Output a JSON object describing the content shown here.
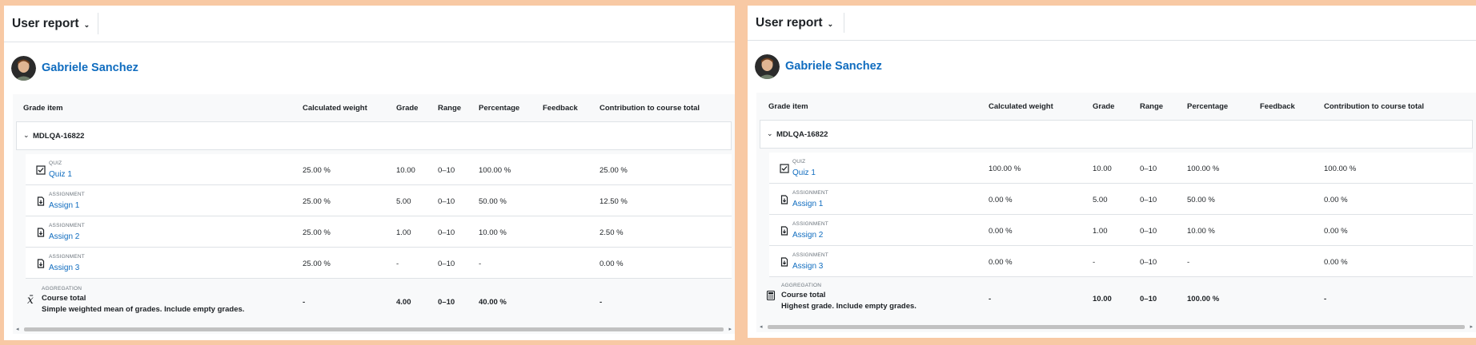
{
  "panels": [
    {
      "header_title": "User report",
      "user_name": "Gabriele Sanchez",
      "columns": [
        "Grade item",
        "Calculated weight",
        "Grade",
        "Range",
        "Percentage",
        "Feedback",
        "Contribution to course total"
      ],
      "category": "MDLQA-16822",
      "items": [
        {
          "type": "QUIZ",
          "name": "Quiz 1",
          "icon": "quiz-icon",
          "weight": "25.00 %",
          "grade": "10.00",
          "range": "0–10",
          "percentage": "100.00 %",
          "feedback": "",
          "contribution": "25.00 %"
        },
        {
          "type": "ASSIGNMENT",
          "name": "Assign 1",
          "icon": "assignment-icon",
          "weight": "25.00 %",
          "grade": "5.00",
          "range": "0–10",
          "percentage": "50.00 %",
          "feedback": "",
          "contribution": "12.50 %"
        },
        {
          "type": "ASSIGNMENT",
          "name": "Assign 2",
          "icon": "assignment-icon",
          "weight": "25.00 %",
          "grade": "1.00",
          "range": "0–10",
          "percentage": "10.00 %",
          "feedback": "",
          "contribution": "2.50 %"
        },
        {
          "type": "ASSIGNMENT",
          "name": "Assign 3",
          "icon": "assignment-icon",
          "weight": "25.00 %",
          "grade": "-",
          "range": "0–10",
          "percentage": "-",
          "feedback": "",
          "contribution": "0.00 %"
        }
      ],
      "total": {
        "type": "AGGREGATION",
        "name": "Course total",
        "description": "Simple weighted mean of grades. Include empty grades.",
        "icon": "sigma-icon",
        "weight": "-",
        "grade": "4.00",
        "range": "0–10",
        "percentage": "40.00 %",
        "contribution": "-"
      }
    },
    {
      "header_title": "User report",
      "user_name": "Gabriele Sanchez",
      "columns": [
        "Grade item",
        "Calculated weight",
        "Grade",
        "Range",
        "Percentage",
        "Feedback",
        "Contribution to course total"
      ],
      "category": "MDLQA-16822",
      "items": [
        {
          "type": "QUIZ",
          "name": "Quiz 1",
          "icon": "quiz-icon",
          "weight": "100.00 %",
          "grade": "10.00",
          "range": "0–10",
          "percentage": "100.00 %",
          "feedback": "",
          "contribution": "100.00 %"
        },
        {
          "type": "ASSIGNMENT",
          "name": "Assign 1",
          "icon": "assignment-icon",
          "weight": "0.00 %",
          "grade": "5.00",
          "range": "0–10",
          "percentage": "50.00 %",
          "feedback": "",
          "contribution": "0.00 %"
        },
        {
          "type": "ASSIGNMENT",
          "name": "Assign 2",
          "icon": "assignment-icon",
          "weight": "0.00 %",
          "grade": "1.00",
          "range": "0–10",
          "percentage": "10.00 %",
          "feedback": "",
          "contribution": "0.00 %"
        },
        {
          "type": "ASSIGNMENT",
          "name": "Assign 3",
          "icon": "assignment-icon",
          "weight": "0.00 %",
          "grade": "-",
          "range": "0–10",
          "percentage": "-",
          "feedback": "",
          "contribution": "0.00 %"
        }
      ],
      "total": {
        "type": "AGGREGATION",
        "name": "Course total",
        "description": "Highest grade. Include empty grades.",
        "icon": "calculator-icon",
        "weight": "-",
        "grade": "10.00",
        "range": "0–10",
        "percentage": "100.00 %",
        "contribution": "-"
      }
    }
  ]
}
